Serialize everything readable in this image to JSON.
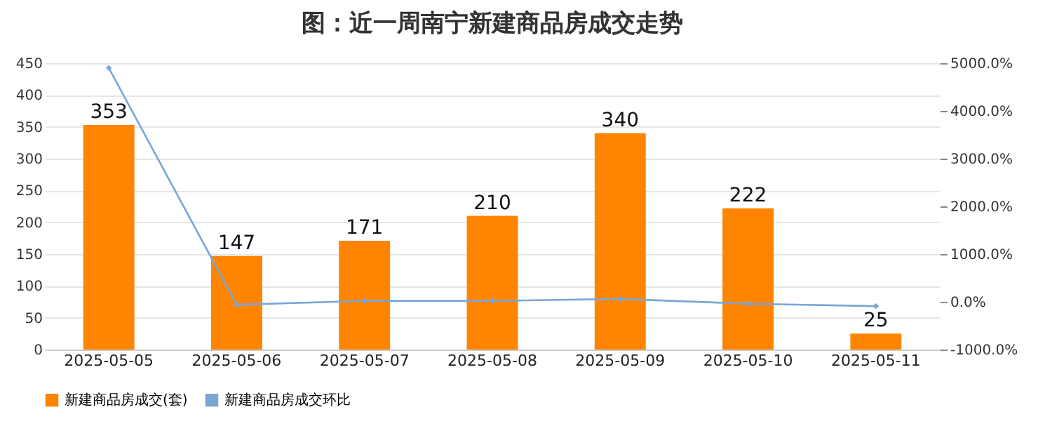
{
  "chart_data": {
    "type": "bar",
    "title": "图：近一周南宁新建商品房成交走势",
    "categories": [
      "2025-05-05",
      "2025-05-06",
      "2025-05-07",
      "2025-05-08",
      "2025-05-09",
      "2025-05-10",
      "2025-05-11"
    ],
    "series": [
      {
        "name": "新建商品房成交(套)",
        "color": "#ff8400",
        "values": [
          353,
          147,
          171,
          210,
          340,
          222,
          25
        ],
        "value_labels": [
          "353",
          "147",
          "171",
          "210",
          "340",
          "222",
          "25"
        ]
      },
      {
        "name": "新建商品房成交环比",
        "type": "line",
        "axis": "y2",
        "color": "#7aa6d6",
        "marker": "diamond",
        "values": [
          4900,
          -60,
          20,
          20,
          60,
          -40,
          -90
        ]
      }
    ],
    "ylim": [
      0,
      450
    ],
    "yticks": [
      0,
      50,
      100,
      150,
      200,
      250,
      300,
      350,
      400,
      450
    ],
    "y2lim": [
      -1000,
      5000
    ],
    "y2ticks": [
      {
        "value": -1000,
        "label": "-1000.0%"
      },
      {
        "value": 0,
        "label": "0.0%"
      },
      {
        "value": 1000,
        "label": "1000.0%"
      },
      {
        "value": 2000,
        "label": "2000.0%"
      },
      {
        "value": 3000,
        "label": "3000.0%"
      },
      {
        "value": 4000,
        "label": "4000.0%"
      },
      {
        "value": 5000,
        "label": "5000.0%"
      }
    ],
    "grid": "y",
    "legend": "bottom"
  }
}
